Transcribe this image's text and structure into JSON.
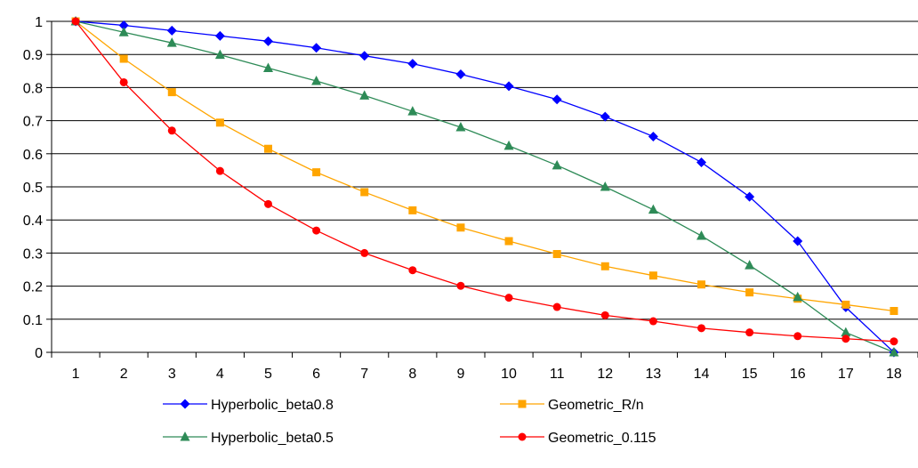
{
  "chart_data": {
    "type": "line",
    "title": "",
    "xlabel": "",
    "ylabel": "",
    "ylim": [
      0,
      1
    ],
    "yticks": [
      "0",
      "0.1",
      "0.2",
      "0.3",
      "0.4",
      "0.5",
      "0.6",
      "0.7",
      "0.8",
      "0.9",
      "1"
    ],
    "x": [
      "1",
      "2",
      "3",
      "4",
      "5",
      "6",
      "7",
      "8",
      "9",
      "10",
      "11",
      "12",
      "13",
      "14",
      "15",
      "16",
      "17",
      "18"
    ],
    "grid": "horizontal",
    "legend_position": "bottom",
    "series": [
      {
        "name": "Hyperbolic_beta0.8",
        "color": "#0000ff",
        "marker": "diamond",
        "values": [
          1.0,
          0.988,
          0.972,
          0.956,
          0.94,
          0.92,
          0.896,
          0.872,
          0.84,
          0.804,
          0.764,
          0.712,
          0.652,
          0.574,
          0.47,
          0.336,
          0.136,
          0.0
        ]
      },
      {
        "name": "Geometric_R/n",
        "color": "#ffa500",
        "marker": "square",
        "values": [
          1.0,
          0.887,
          0.786,
          0.694,
          0.615,
          0.544,
          0.484,
          0.429,
          0.377,
          0.336,
          0.297,
          0.26,
          0.232,
          0.205,
          0.181,
          0.162,
          0.144,
          0.125
        ]
      },
      {
        "name": "Hyperbolic_beta0.5",
        "color": "#2e8b57",
        "marker": "triangle",
        "values": [
          1.0,
          0.967,
          0.935,
          0.899,
          0.859,
          0.82,
          0.776,
          0.728,
          0.68,
          0.624,
          0.565,
          0.5,
          0.431,
          0.352,
          0.263,
          0.167,
          0.06,
          0.0
        ]
      },
      {
        "name": "Geometric_0.115",
        "color": "#ff0000",
        "marker": "circle",
        "values": [
          1.0,
          0.816,
          0.67,
          0.548,
          0.448,
          0.368,
          0.3,
          0.248,
          0.201,
          0.165,
          0.137,
          0.112,
          0.094,
          0.073,
          0.06,
          0.049,
          0.041,
          0.033
        ]
      }
    ]
  }
}
